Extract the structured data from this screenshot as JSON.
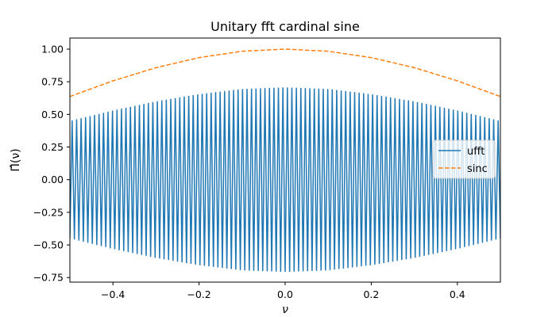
{
  "chart_data": {
    "type": "line",
    "title": "Unitary fft cardinal sine",
    "xlabel": "ν",
    "ylabel": "Π̂(ν)",
    "xlim": [
      -0.5,
      0.5
    ],
    "ylim": [
      -0.785,
      1.085
    ],
    "xticks": [
      -0.4,
      -0.2,
      0.0,
      0.2,
      0.4
    ],
    "xtick_labels": [
      "−0.4",
      "−0.2",
      "0.0",
      "0.2",
      "0.4"
    ],
    "yticks": [
      -0.75,
      -0.5,
      -0.25,
      0.0,
      0.25,
      0.5,
      0.75,
      1.0
    ],
    "ytick_labels": [
      "−0.75",
      "−0.50",
      "−0.25",
      "0.00",
      "0.25",
      "0.50",
      "0.75",
      "1.00"
    ],
    "grid": false,
    "legend": {
      "placement": "right",
      "entries": [
        "ufft",
        "sinc"
      ]
    },
    "series": [
      {
        "name": "ufft",
        "color": "#1f77b4",
        "style": "solid",
        "description_of_values": "rapidly oscillating signal alternating sign each sample; envelope peaks at about ±0.707 at ν=0 and falls to about ±0.45 at ν=±0.5",
        "oscillation_cycles": 96,
        "envelope_x": [
          -0.5,
          -0.4,
          -0.3,
          -0.2,
          -0.1,
          0.0,
          0.1,
          0.2,
          0.3,
          0.4,
          0.5
        ],
        "envelope_y": [
          0.45,
          0.53,
          0.6,
          0.655,
          0.695,
          0.707,
          0.695,
          0.655,
          0.6,
          0.53,
          0.45
        ]
      },
      {
        "name": "sinc",
        "color": "#ff7f0e",
        "style": "dashed",
        "x": [
          -0.5,
          -0.4,
          -0.3,
          -0.2,
          -0.1,
          0.0,
          0.1,
          0.2,
          0.3,
          0.4,
          0.5
        ],
        "y": [
          0.637,
          0.757,
          0.858,
          0.935,
          0.984,
          1.0,
          0.984,
          0.935,
          0.858,
          0.757,
          0.637
        ]
      }
    ]
  }
}
